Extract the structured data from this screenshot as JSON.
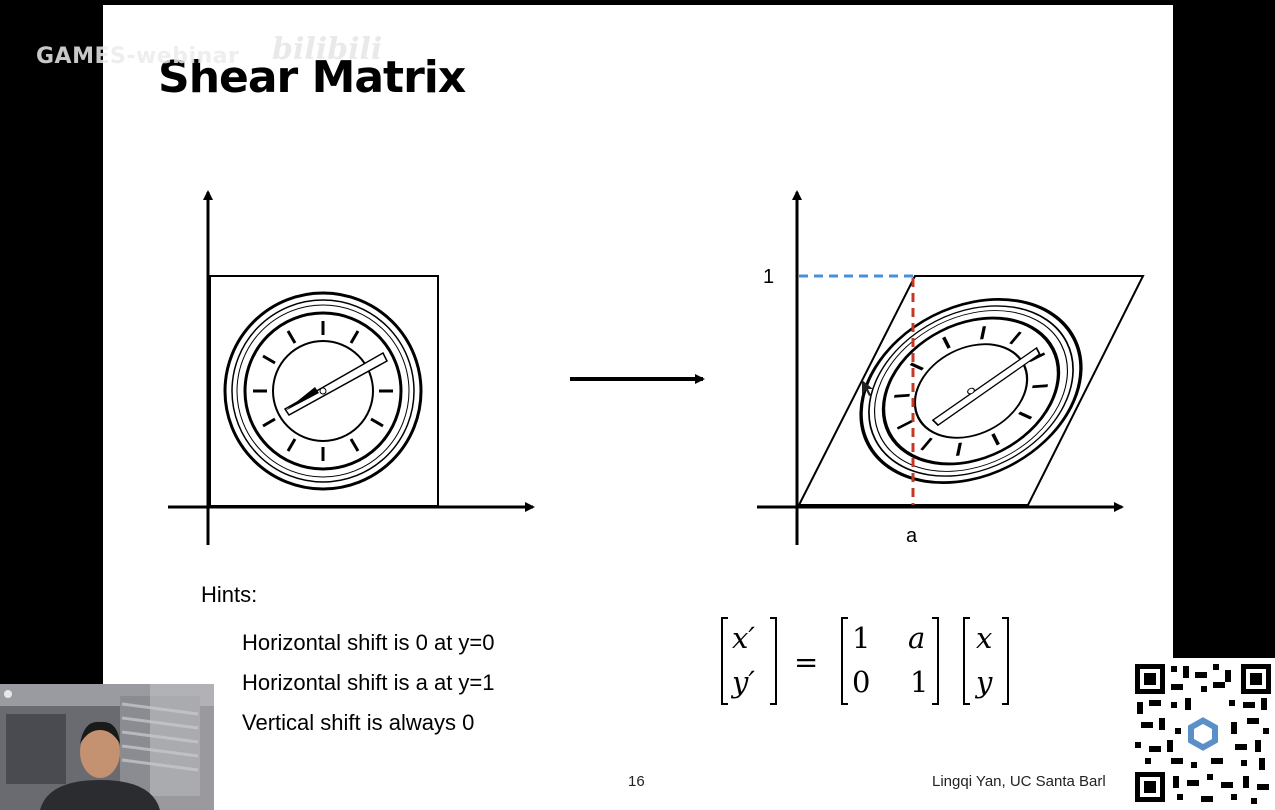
{
  "watermark": {
    "text": "GAMES-webinar",
    "logo": "bilibili"
  },
  "slide": {
    "title": "Shear Matrix",
    "diagram": {
      "label_one": "1",
      "label_a": "a",
      "accent_blue": "#4a90d9",
      "accent_red": "#c0392b"
    },
    "hints": {
      "heading": "Hints:",
      "items": [
        "Horizontal shift is 0 at y=0",
        "Horizontal shift is a at y=1",
        "Vertical shift is always 0"
      ]
    },
    "equation": {
      "lhs": [
        "x′",
        "y′"
      ],
      "equals": "=",
      "matrix": [
        [
          "1",
          "a"
        ],
        [
          "0",
          "1"
        ]
      ],
      "rhs": [
        "x",
        "y"
      ]
    },
    "page_number": "16",
    "author": "Lingqi Yan, UC Santa Barl"
  },
  "overlays": {
    "webcam": "presenter-video",
    "qr": "qr-code"
  }
}
